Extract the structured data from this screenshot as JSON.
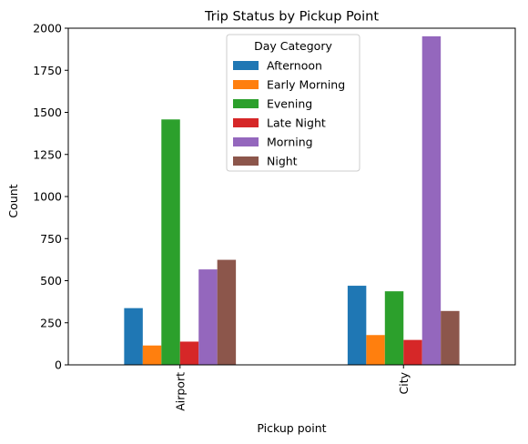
{
  "chart_data": {
    "type": "bar",
    "title": "Trip Status by Pickup Point",
    "xlabel": "Pickup point",
    "ylabel": "Count",
    "categories": [
      "Airport",
      "City"
    ],
    "ylim": [
      0,
      2000
    ],
    "yticks": [
      0,
      250,
      500,
      750,
      1000,
      1250,
      1500,
      1750,
      2000
    ],
    "grid": false,
    "legend": {
      "title": "Day Category",
      "placement": "top-center"
    },
    "series": [
      {
        "name": "Afternoon",
        "color": "#1f77b4",
        "values": [
          337,
          470
        ]
      },
      {
        "name": "Early Morning",
        "color": "#ff7f0e",
        "values": [
          115,
          177
        ]
      },
      {
        "name": "Evening",
        "color": "#2ca02c",
        "values": [
          1458,
          437
        ]
      },
      {
        "name": "Late Night",
        "color": "#d62728",
        "values": [
          138,
          148
        ]
      },
      {
        "name": "Morning",
        "color": "#9467bd",
        "values": [
          567,
          1952
        ]
      },
      {
        "name": "Night",
        "color": "#8c564b",
        "values": [
          624,
          320
        ]
      }
    ]
  }
}
